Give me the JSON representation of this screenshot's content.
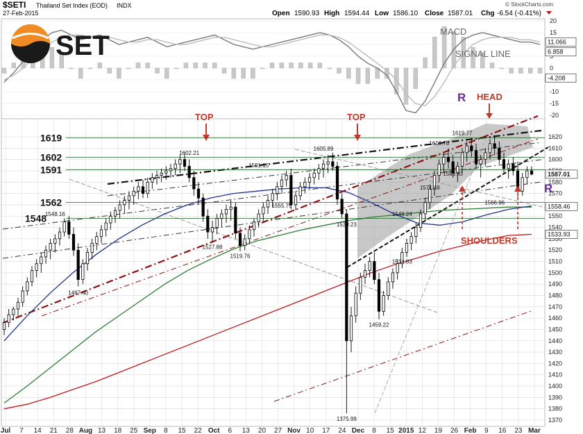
{
  "header": {
    "symbol": "$SETI",
    "name": "Thailand Set Index (EOD)",
    "exchange": "INDX",
    "date": "27-Feb-2015",
    "open_label": "Open",
    "open": "1590.93",
    "high_label": "High",
    "high": "1594.44",
    "low_label": "Low",
    "low": "1586.10",
    "close_label": "Close",
    "close": "1587.01",
    "chg_label": "Chg",
    "chg": "-6.54 (-0.41%)",
    "watermark": "© StockCharts.com"
  },
  "logo": {
    "text": "SET"
  },
  "colors": {
    "candle": "#000000",
    "ma_blue": "#1f2f8f",
    "ma_green": "#2e7d32",
    "ma_red": "#c0171e",
    "trend_darkred": "#8b1010",
    "grid": "#d8d8d8",
    "annotation_red": "#c0392b",
    "annotation_purple": "#6a2c91",
    "shade": "#9a9a9a"
  },
  "macd_panel": {
    "labels": {
      "macd": "MACD",
      "signal": "SIGNAL LINE"
    },
    "y_ticks": [
      "20",
      "15",
      "10",
      "5",
      "0",
      "-5",
      "-10",
      "-15",
      "-20"
    ],
    "ylim": [
      -24,
      24
    ],
    "value_tags": [
      "11.066",
      "6.858",
      "-4.208"
    ]
  },
  "chart_data": {
    "type": "candlestick",
    "title": "$SETI Thailand Set Index (EOD)",
    "ylim": [
      1370,
      1630
    ],
    "y_ticks": [
      1370,
      1380,
      1390,
      1400,
      1410,
      1420,
      1430,
      1440,
      1450,
      1460,
      1470,
      1480,
      1490,
      1500,
      1510,
      1520,
      1530,
      1540,
      1550,
      1560,
      1570,
      1580,
      1590,
      1600,
      1610,
      1620
    ],
    "x_ticks": [
      "Jul",
      "7",
      "14",
      "21",
      "28",
      "Aug",
      "13",
      "18",
      "25",
      "Sep",
      "8",
      "15",
      "22",
      "Oct",
      "6",
      "13",
      "20",
      "27",
      "Nov",
      "10",
      "17",
      "24",
      "Dec",
      "8",
      "15",
      "2015",
      "12",
      "19",
      "26",
      "Feb",
      "9",
      "16",
      "23",
      "Mar"
    ],
    "candles": [
      [
        1450,
        1460,
        1445,
        1456
      ],
      [
        1456,
        1468,
        1452,
        1463
      ],
      [
        1463,
        1470,
        1458,
        1468
      ],
      [
        1468,
        1478,
        1462,
        1474
      ],
      [
        1474,
        1488,
        1470,
        1484
      ],
      [
        1484,
        1496,
        1480,
        1492
      ],
      [
        1492,
        1506,
        1488,
        1502
      ],
      [
        1502,
        1512,
        1496,
        1508
      ],
      [
        1508,
        1518,
        1500,
        1514
      ],
      [
        1514,
        1524,
        1508,
        1520
      ],
      [
        1520,
        1530,
        1512,
        1526
      ],
      [
        1526,
        1534,
        1518,
        1530
      ],
      [
        1530,
        1540,
        1524,
        1536
      ],
      [
        1536,
        1548,
        1532,
        1545
      ],
      [
        1545,
        1550,
        1530,
        1534
      ],
      [
        1534,
        1540,
        1515,
        1520
      ],
      [
        1520,
        1526,
        1488,
        1494
      ],
      [
        1494,
        1512,
        1490,
        1508
      ],
      [
        1508,
        1522,
        1502,
        1518
      ],
      [
        1518,
        1530,
        1512,
        1526
      ],
      [
        1526,
        1536,
        1520,
        1532
      ],
      [
        1532,
        1542,
        1526,
        1538
      ],
      [
        1538,
        1548,
        1532,
        1544
      ],
      [
        1544,
        1554,
        1538,
        1550
      ],
      [
        1550,
        1558,
        1544,
        1555
      ],
      [
        1555,
        1564,
        1548,
        1560
      ],
      [
        1560,
        1568,
        1552,
        1564
      ],
      [
        1564,
        1572,
        1556,
        1568
      ],
      [
        1568,
        1576,
        1560,
        1572
      ],
      [
        1572,
        1580,
        1565,
        1576
      ],
      [
        1576,
        1582,
        1566,
        1570
      ],
      [
        1570,
        1584,
        1566,
        1580
      ],
      [
        1580,
        1588,
        1574,
        1584
      ],
      [
        1584,
        1590,
        1578,
        1586
      ],
      [
        1586,
        1592,
        1580,
        1588
      ],
      [
        1588,
        1594,
        1582,
        1590
      ],
      [
        1590,
        1596,
        1584,
        1592
      ],
      [
        1592,
        1600,
        1586,
        1596
      ],
      [
        1596,
        1604,
        1588,
        1600
      ],
      [
        1600,
        1606,
        1590,
        1594
      ],
      [
        1594,
        1600,
        1580,
        1584
      ],
      [
        1584,
        1590,
        1568,
        1574
      ],
      [
        1574,
        1580,
        1560,
        1566
      ],
      [
        1566,
        1570,
        1545,
        1550
      ],
      [
        1550,
        1556,
        1530,
        1536
      ],
      [
        1536,
        1546,
        1527,
        1540
      ],
      [
        1540,
        1552,
        1534,
        1548
      ],
      [
        1548,
        1556,
        1540,
        1552
      ],
      [
        1552,
        1560,
        1544,
        1556
      ],
      [
        1556,
        1564,
        1546,
        1558
      ],
      [
        1558,
        1562,
        1530,
        1535
      ],
      [
        1535,
        1540,
        1519,
        1524
      ],
      [
        1524,
        1534,
        1520,
        1530
      ],
      [
        1530,
        1542,
        1526,
        1538
      ],
      [
        1538,
        1548,
        1532,
        1545
      ],
      [
        1545,
        1556,
        1540,
        1552
      ],
      [
        1552,
        1562,
        1546,
        1558
      ],
      [
        1558,
        1568,
        1552,
        1564
      ],
      [
        1564,
        1574,
        1558,
        1570
      ],
      [
        1570,
        1580,
        1564,
        1576
      ],
      [
        1576,
        1586,
        1570,
        1582
      ],
      [
        1582,
        1590,
        1576,
        1586
      ],
      [
        1586,
        1592,
        1556,
        1560
      ],
      [
        1560,
        1572,
        1555,
        1568
      ],
      [
        1568,
        1580,
        1564,
        1576
      ],
      [
        1576,
        1584,
        1570,
        1580
      ],
      [
        1580,
        1588,
        1574,
        1584
      ],
      [
        1584,
        1592,
        1578,
        1588
      ],
      [
        1588,
        1596,
        1582,
        1592
      ],
      [
        1592,
        1600,
        1584,
        1596
      ],
      [
        1596,
        1604,
        1588,
        1598
      ],
      [
        1598,
        1606,
        1590,
        1594
      ],
      [
        1594,
        1598,
        1560,
        1565
      ],
      [
        1565,
        1570,
        1548,
        1552
      ],
      [
        1552,
        1556,
        1376,
        1440
      ],
      [
        1440,
        1470,
        1430,
        1462
      ],
      [
        1462,
        1488,
        1456,
        1482
      ],
      [
        1482,
        1500,
        1476,
        1496
      ],
      [
        1496,
        1508,
        1490,
        1502
      ],
      [
        1502,
        1514,
        1496,
        1510
      ],
      [
        1510,
        1518,
        1490,
        1494
      ],
      [
        1494,
        1500,
        1459,
        1466
      ],
      [
        1466,
        1484,
        1462,
        1480
      ],
      [
        1480,
        1496,
        1476,
        1492
      ],
      [
        1492,
        1504,
        1486,
        1500
      ],
      [
        1500,
        1512,
        1494,
        1508
      ],
      [
        1508,
        1522,
        1504,
        1518
      ],
      [
        1518,
        1530,
        1514,
        1526
      ],
      [
        1526,
        1536,
        1520,
        1532
      ],
      [
        1532,
        1544,
        1526,
        1540
      ],
      [
        1540,
        1556,
        1536,
        1552
      ],
      [
        1552,
        1566,
        1546,
        1562
      ],
      [
        1562,
        1578,
        1556,
        1574
      ],
      [
        1574,
        1590,
        1568,
        1586
      ],
      [
        1586,
        1600,
        1580,
        1596
      ],
      [
        1596,
        1606,
        1588,
        1602
      ],
      [
        1602,
        1610,
        1592,
        1598
      ],
      [
        1598,
        1604,
        1584,
        1588
      ],
      [
        1588,
        1598,
        1580,
        1594
      ],
      [
        1594,
        1610,
        1588,
        1606
      ],
      [
        1606,
        1616,
        1598,
        1612
      ],
      [
        1612,
        1619,
        1602,
        1608
      ],
      [
        1608,
        1614,
        1592,
        1596
      ],
      [
        1596,
        1604,
        1584,
        1600
      ],
      [
        1600,
        1610,
        1594,
        1606
      ],
      [
        1606,
        1618,
        1600,
        1614
      ],
      [
        1614,
        1620,
        1604,
        1610
      ],
      [
        1610,
        1616,
        1596,
        1600
      ],
      [
        1600,
        1606,
        1588,
        1592
      ],
      [
        1592,
        1600,
        1583,
        1596
      ],
      [
        1596,
        1602,
        1586,
        1590
      ],
      [
        1590,
        1598,
        1567,
        1572
      ],
      [
        1572,
        1588,
        1568,
        1584
      ],
      [
        1584,
        1594,
        1578,
        1590
      ],
      [
        1590,
        1594,
        1586,
        1587
      ]
    ],
    "level_lines": [
      {
        "label": "1619",
        "value": 1619
      },
      {
        "label": "1602",
        "value": 1602
      },
      {
        "label": "1591",
        "value": 1591
      },
      {
        "label": "1562",
        "value": 1562
      },
      {
        "label": "1548",
        "value": 1548
      }
    ],
    "price_labels": [
      {
        "text": "1602.21",
        "i": 40,
        "value": 1602.21
      },
      {
        "text": "1605.89",
        "i": 69,
        "value": 1605.89
      },
      {
        "text": "1591.15",
        "i": 55,
        "value": 1591.15
      },
      {
        "text": "1548.16",
        "i": 11,
        "value": 1548.16
      },
      {
        "text": "1487.40",
        "i": 16,
        "value": 1487.4
      },
      {
        "text": "1527.88",
        "i": 45,
        "value": 1527.88
      },
      {
        "text": "1519.76",
        "i": 51,
        "value": 1519.76
      },
      {
        "text": "1555.75",
        "i": 60,
        "value": 1555.75
      },
      {
        "text": "1539.23",
        "i": 74,
        "value": 1539.23
      },
      {
        "text": "1548.24",
        "i": 86,
        "value": 1548.24
      },
      {
        "text": "1375.99",
        "i": 74,
        "value": 1375.99
      },
      {
        "text": "1459.22",
        "i": 81,
        "value": 1459.22
      },
      {
        "text": "1514.83",
        "i": 86,
        "value": 1514.83
      },
      {
        "text": "1571.69",
        "i": 92,
        "value": 1571.69
      },
      {
        "text": "1583.93",
        "i": 97,
        "value": 1583.93
      },
      {
        "text": "1610.78",
        "i": 94,
        "value": 1610.78
      },
      {
        "text": "1619.77",
        "i": 99,
        "value": 1619.77
      },
      {
        "text": "1566.96",
        "i": 106,
        "value": 1566.96
      }
    ],
    "right_tags": [
      {
        "text": "1587.01",
        "value": 1587.01
      },
      {
        "text": "1558.46",
        "value": 1558.46
      },
      {
        "text": "1533.93",
        "value": 1533.93
      }
    ],
    "annotations": {
      "top1": "TOP",
      "top2": "TOP",
      "head": "HEAD",
      "shoulders": "SHOULDERS",
      "r1": "R",
      "r2": "R"
    },
    "grid": true
  }
}
